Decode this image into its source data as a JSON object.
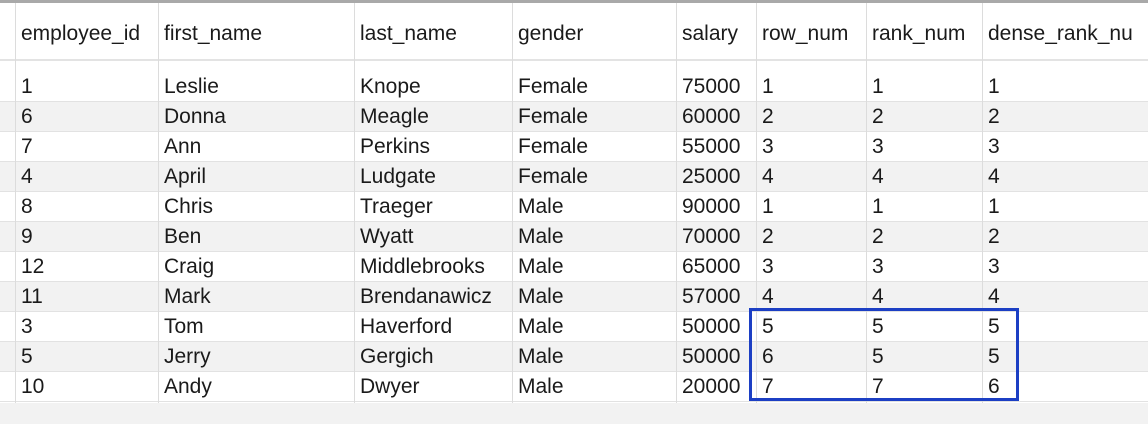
{
  "columns": [
    "employee_id",
    "first_name",
    "last_name",
    "gender",
    "salary",
    "row_num",
    "rank_num",
    "dense_rank_nu"
  ],
  "rows": [
    [
      "1",
      "Leslie",
      "Knope",
      "Female",
      "75000",
      "1",
      "1",
      "1"
    ],
    [
      "6",
      "Donna",
      "Meagle",
      "Female",
      "60000",
      "2",
      "2",
      "2"
    ],
    [
      "7",
      "Ann",
      "Perkins",
      "Female",
      "55000",
      "3",
      "3",
      "3"
    ],
    [
      "4",
      "April",
      "Ludgate",
      "Female",
      "25000",
      "4",
      "4",
      "4"
    ],
    [
      "8",
      "Chris",
      "Traeger",
      "Male",
      "90000",
      "1",
      "1",
      "1"
    ],
    [
      "9",
      "Ben",
      "Wyatt",
      "Male",
      "70000",
      "2",
      "2",
      "2"
    ],
    [
      "12",
      "Craig",
      "Middlebrooks",
      "Male",
      "65000",
      "3",
      "3",
      "3"
    ],
    [
      "11",
      "Mark",
      "Brendanawicz",
      "Male",
      "57000",
      "4",
      "4",
      "4"
    ],
    [
      "3",
      "Tom",
      "Haverford",
      "Male",
      "50000",
      "5",
      "5",
      "5"
    ],
    [
      "5",
      "Jerry",
      "Gergich",
      "Male",
      "50000",
      "6",
      "5",
      "5"
    ],
    [
      "10",
      "Andy",
      "Dwyer",
      "Male",
      "20000",
      "7",
      "7",
      "6"
    ]
  ],
  "highlight_color": "#1c3fc4"
}
